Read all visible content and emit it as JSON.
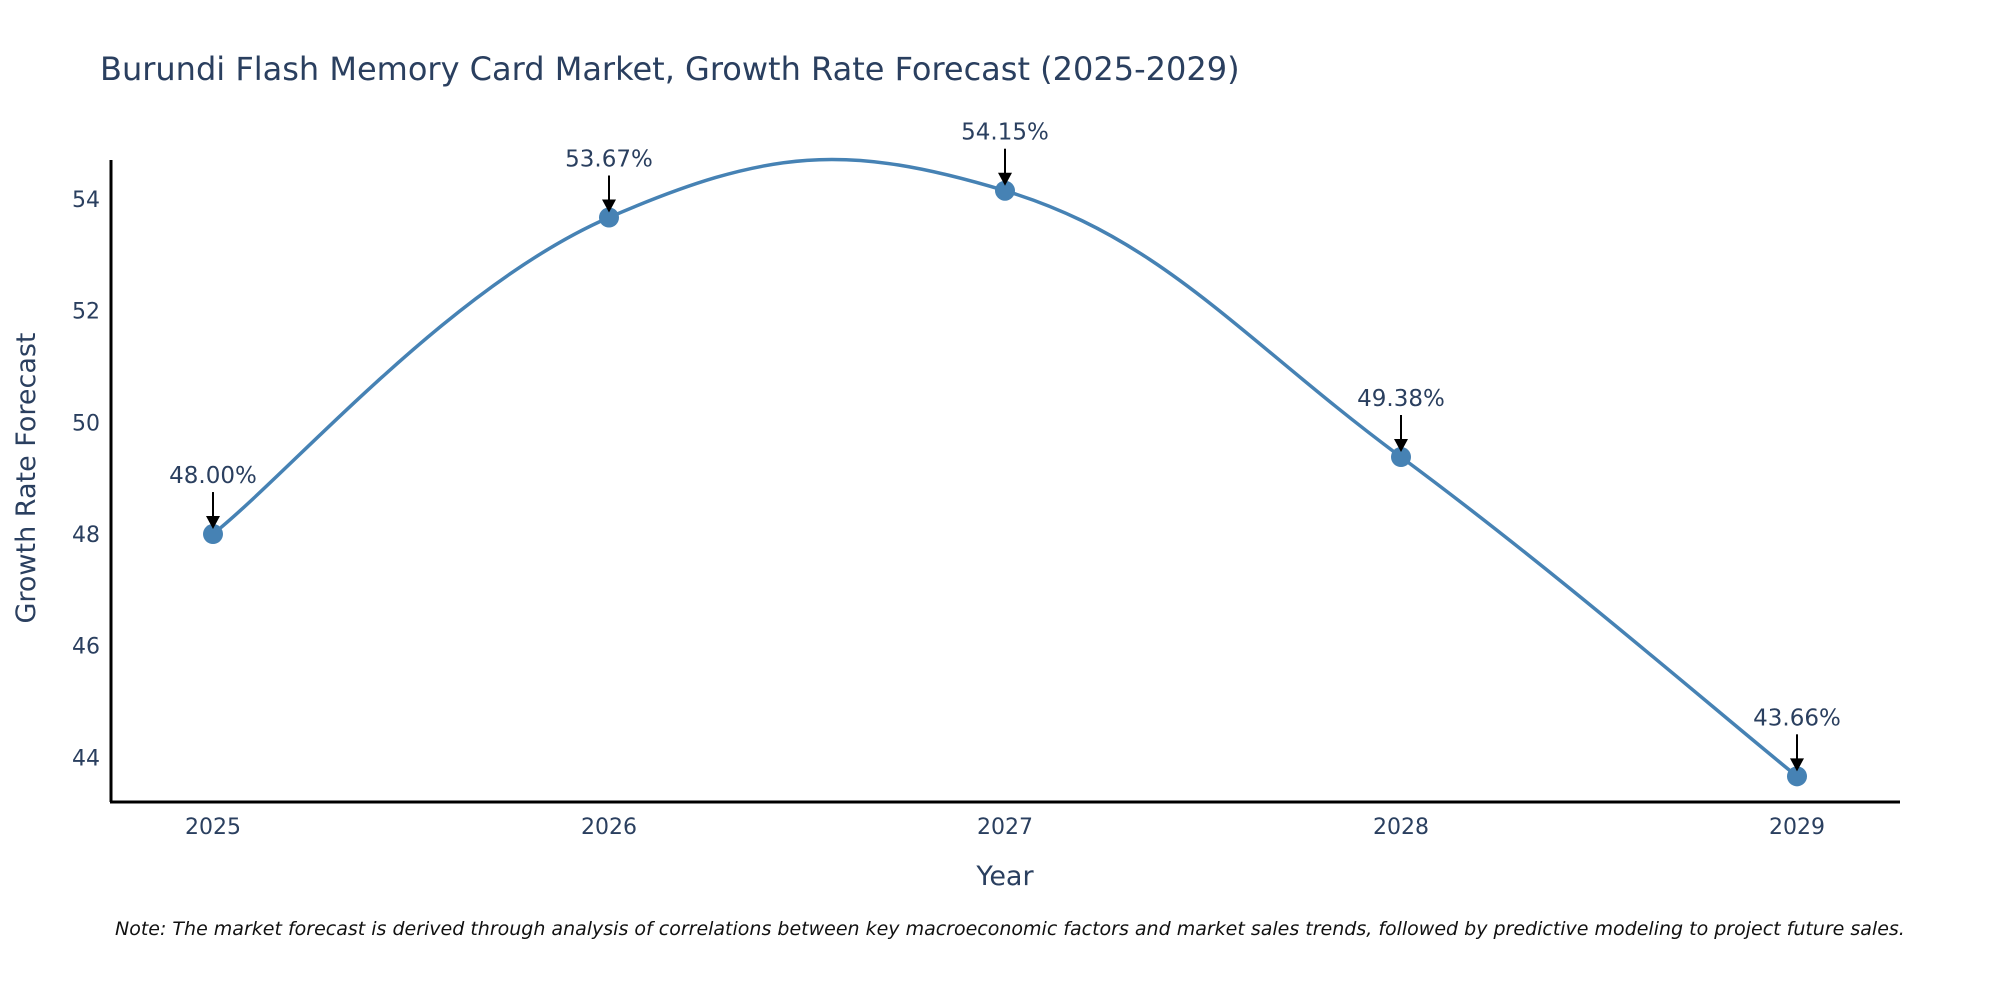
{
  "chart_data": {
    "type": "line",
    "title": "Burundi Flash Memory Card Market, Growth Rate Forecast (2025-2029)",
    "xlabel": "Year",
    "ylabel": "Growth Rate Forecast",
    "categories": [
      "2025",
      "2026",
      "2027",
      "2028",
      "2029"
    ],
    "values": [
      48.0,
      53.67,
      54.15,
      49.38,
      43.66
    ],
    "data_labels": [
      "48.00%",
      "53.67%",
      "54.15%",
      "49.38%",
      "43.66%"
    ],
    "y_ticks": [
      44,
      46,
      48,
      50,
      52,
      54
    ],
    "ylim": [
      43.2,
      54.7
    ],
    "line_shape": "spline",
    "grid": false,
    "colors": {
      "line": "#4682b4",
      "marker": "#4682b4",
      "arrow": "#000000",
      "axis": "#000000"
    }
  },
  "note": "Note: The market forecast is derived through analysis of correlations between key macroeconomic factors and market sales trends, followed by predictive modeling to project future sales."
}
